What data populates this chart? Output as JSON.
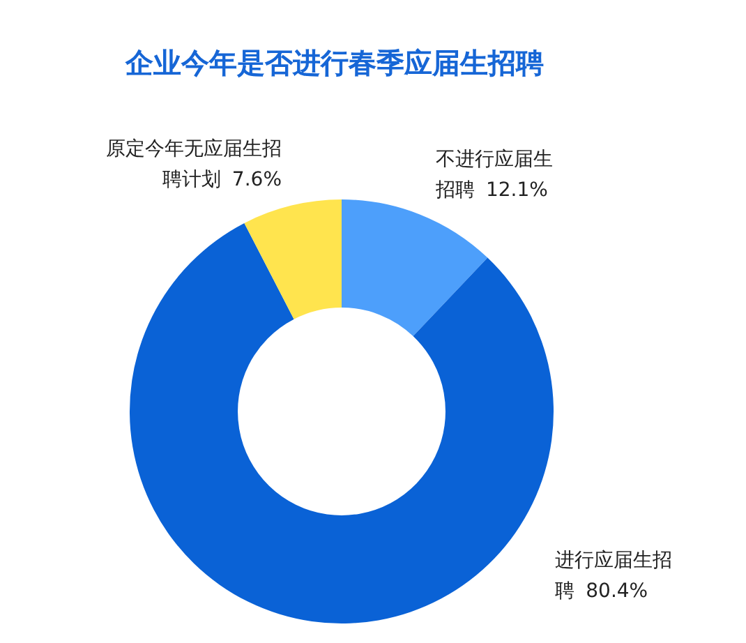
{
  "chart_data": {
    "type": "donut",
    "title": "企业今年是否进行春季应届生招聘",
    "categories": [
      "不进行应届生招聘",
      "进行应届生招聘",
      "原定今年无应届生招聘计划"
    ],
    "values": [
      12.1,
      80.4,
      7.6
    ],
    "colors": [
      "#4d9ffb",
      "#0a62d6",
      "#ffe44e"
    ],
    "value_labels": [
      "12.1%",
      "80.4%",
      "7.6%"
    ],
    "legend": false
  }
}
